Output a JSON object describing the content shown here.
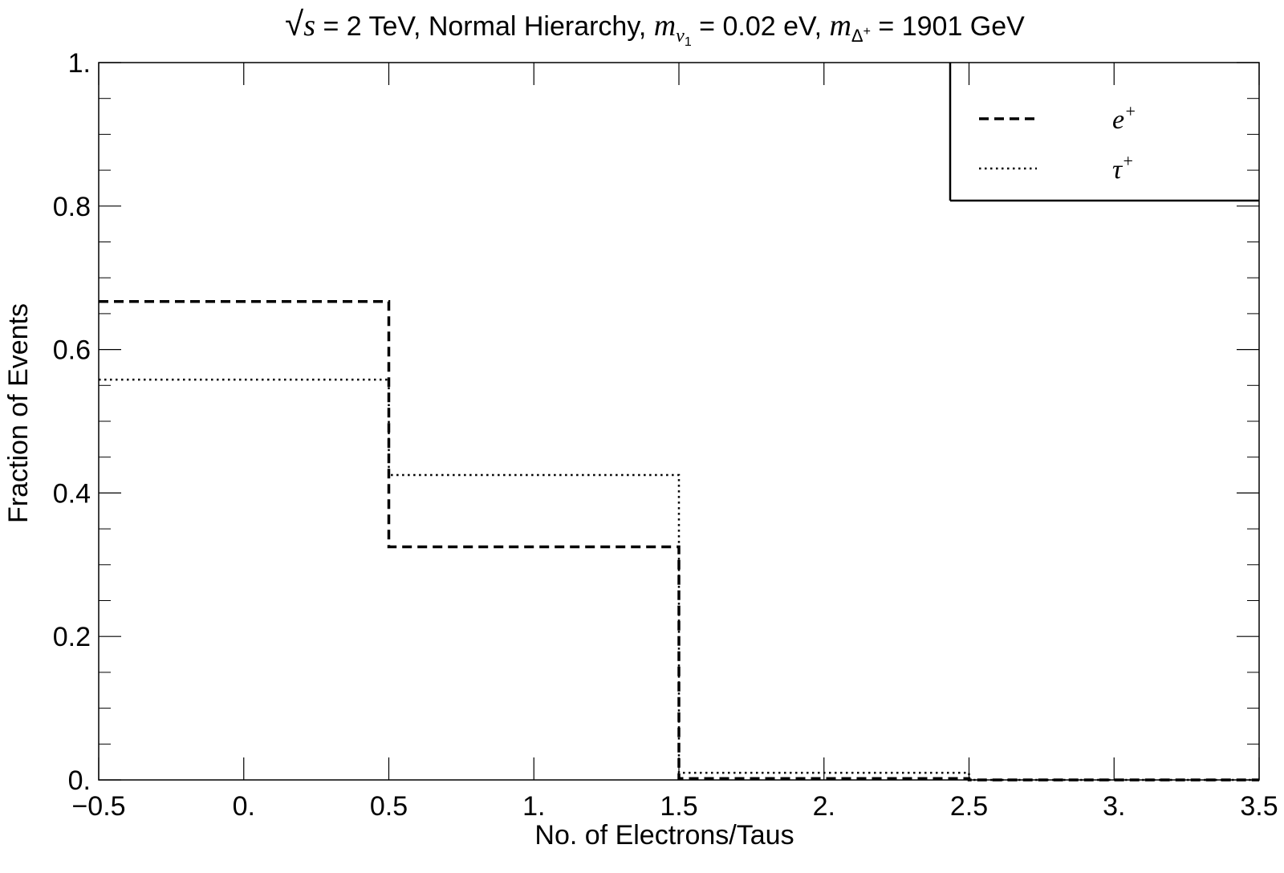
{
  "chart_data": {
    "type": "line",
    "title": {
      "sqrt_symbol": "√",
      "sqrt_var": "s",
      "part1": " = 2 TeV, Normal Hierarchy, ",
      "mass_sym": "m",
      "nu_sub": "ν",
      "nu_subsub": "1",
      "part2": " = 0.02 eV, ",
      "delta_sub": "Δ",
      "delta_sup": "+",
      "part3": " = 1901 GeV"
    },
    "xlabel": "No. of Electrons/Taus",
    "ylabel": "Fraction of Events",
    "xlim": [
      -0.5,
      3.5
    ],
    "ylim": [
      0,
      1
    ],
    "x_ticks": [
      -0.5,
      0,
      0.5,
      1,
      1.5,
      2,
      2.5,
      3,
      3.5
    ],
    "x_tick_labels": [
      "−0.5",
      "0.",
      "0.5",
      "1.",
      "1.5",
      "2.",
      "2.5",
      "3.",
      "3.5"
    ],
    "y_ticks": [
      0,
      0.2,
      0.4,
      0.6,
      0.8,
      1
    ],
    "y_tick_labels": [
      "0.",
      "0.2",
      "0.4",
      "0.6",
      "0.8",
      "1."
    ],
    "grid": false,
    "legend_position": "top-right",
    "bin_edges": [
      -0.5,
      0.5,
      1.5,
      2.5,
      3.5
    ],
    "series": [
      {
        "name_base": "e",
        "name_sup": "+",
        "style": "dashed",
        "values": [
          0.667,
          0.325,
          0.002,
          0.0
        ]
      },
      {
        "name_base": "τ",
        "name_sup": "+",
        "style": "dotted",
        "values": [
          0.558,
          0.425,
          0.01,
          0.0
        ]
      }
    ]
  }
}
